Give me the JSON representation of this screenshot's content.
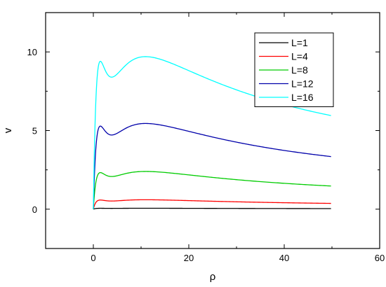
{
  "chart_data": {
    "type": "line",
    "title": "",
    "xlabel": "ρ",
    "ylabel": "v",
    "xlim": [
      -10,
      60
    ],
    "ylim": [
      -2.5,
      12.5
    ],
    "xticks": [
      0,
      20,
      40,
      60
    ],
    "yticks": [
      0,
      5,
      10
    ],
    "grid": false,
    "legend_position": "top-right",
    "series": [
      {
        "name": "L=1",
        "color": "#000000",
        "x_range": [
          0,
          50
        ],
        "peak_x": 1,
        "peak_y": 0.06
      },
      {
        "name": "L=4",
        "color": "#ff0000",
        "x_range": [
          0,
          50
        ],
        "peak_x": 1,
        "peak_y": 0.6
      },
      {
        "name": "L=8",
        "color": "#00cc00",
        "x_range": [
          0,
          50
        ],
        "peak_x": 1,
        "peak_y": 2.4
      },
      {
        "name": "L=12",
        "color": "#0000aa",
        "x_range": [
          0,
          50
        ],
        "peak_x": 1,
        "peak_y": 5.45
      },
      {
        "name": "L=16",
        "color": "#00ffff",
        "x_range": [
          0,
          50
        ],
        "peak_x": 1,
        "peak_y": 9.7
      }
    ]
  }
}
